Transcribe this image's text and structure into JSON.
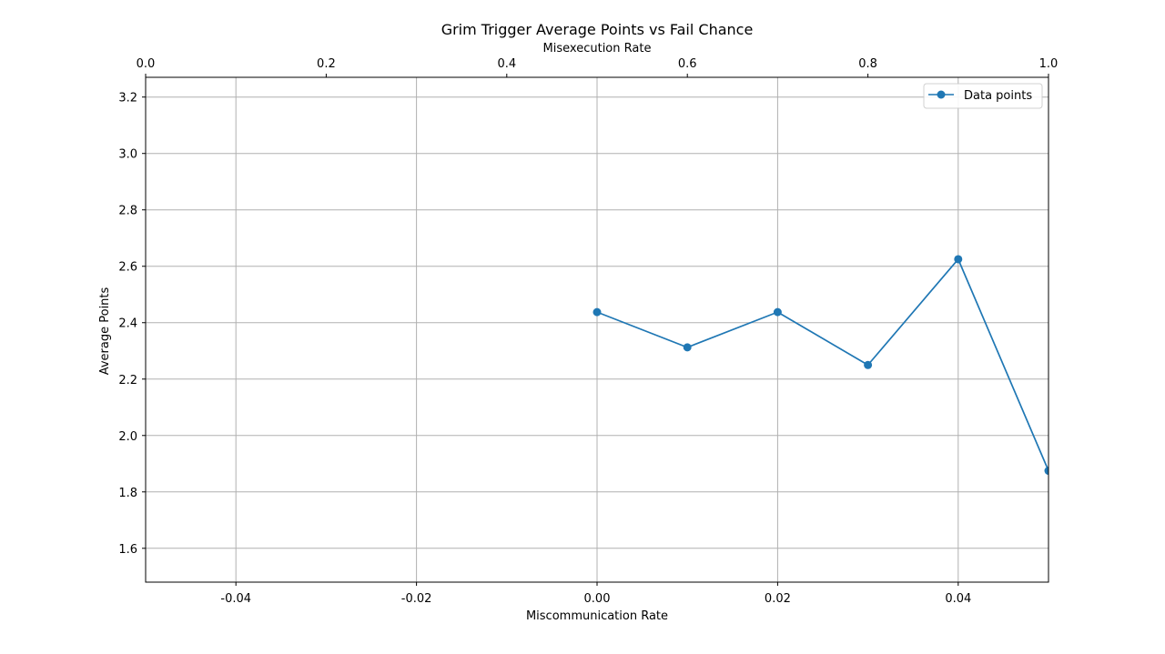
{
  "chart_data": {
    "type": "line",
    "title": "Grim Trigger Average Points vs Fail Chance",
    "xlabel": "Miscommunication Rate",
    "ylabel": "Average Points",
    "x2label": "Misexecution Rate",
    "xlim": [
      -0.05,
      0.05
    ],
    "ylim": [
      1.48,
      3.27
    ],
    "x2lim": [
      0.0,
      1.0
    ],
    "x_ticks": [
      "-0.04",
      "-0.02",
      "0.00",
      "0.02",
      "0.04"
    ],
    "x_tick_values": [
      -0.04,
      -0.02,
      0.0,
      0.02,
      0.04
    ],
    "y_ticks": [
      "1.6",
      "1.8",
      "2.0",
      "2.2",
      "2.4",
      "2.6",
      "2.8",
      "3.0",
      "3.2"
    ],
    "y_tick_values": [
      1.6,
      1.8,
      2.0,
      2.2,
      2.4,
      2.6,
      2.8,
      3.0,
      3.2
    ],
    "x2_ticks": [
      "0.0",
      "0.2",
      "0.4",
      "0.6",
      "0.8",
      "1.0"
    ],
    "x2_tick_values": [
      0.0,
      0.2,
      0.4,
      0.6,
      0.8,
      1.0
    ],
    "grid": true,
    "legend_position": "top-right",
    "series": [
      {
        "name": "Data points",
        "color": "#1f77b4",
        "marker": "circle",
        "x": [
          0.0,
          0.01,
          0.02,
          0.03,
          0.04,
          0.05
        ],
        "y": [
          2.4375,
          2.3125,
          2.4375,
          2.25,
          2.625,
          1.875
        ]
      }
    ]
  }
}
